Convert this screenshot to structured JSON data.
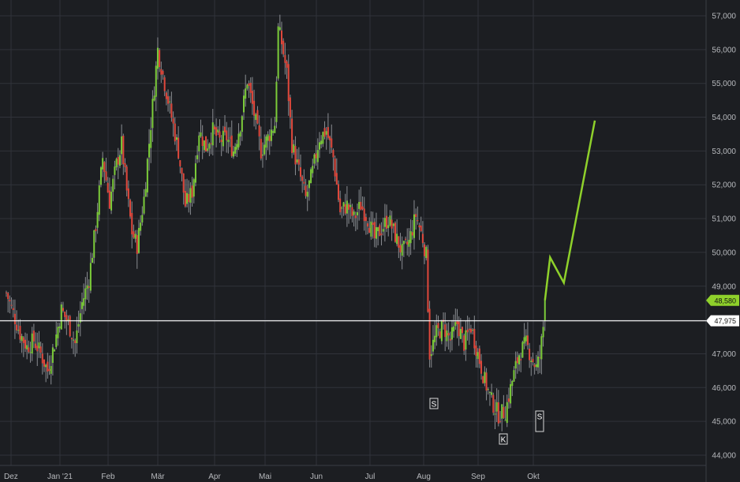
{
  "chart_data": {
    "type": "candlestick",
    "y_axis": {
      "position": "right",
      "ticks": [
        "44,000",
        "45,000",
        "46,000",
        "47,000",
        "48,000",
        "49,000",
        "50,000",
        "51,000",
        "52,000",
        "53,000",
        "54,000",
        "55,000",
        "56,000",
        "57,000"
      ],
      "range": [
        43.6,
        57.4
      ]
    },
    "x_axis": {
      "ticks": [
        "Dez",
        "Jan '21",
        "Feb",
        "Mär",
        "Apr",
        "Mai",
        "Jun",
        "Jul",
        "Aug",
        "Sep",
        "Okt"
      ]
    },
    "grid": true,
    "colors": {
      "background": "#1c1e22",
      "grid": "#30333a",
      "up": "#7ccc3a",
      "down": "#e0483c",
      "wick": "#8a8d92",
      "projection": "#8fd12b",
      "reference_line": "#ffffff"
    },
    "reference_line": {
      "value": 47.975,
      "label": "47,975"
    },
    "last_price": {
      "value": 48.58,
      "label": "48,580"
    },
    "close_path": [
      {
        "x": 0,
        "y": 48.8
      },
      {
        "x": 4,
        "y": 48.2
      },
      {
        "x": 8,
        "y": 47.6
      },
      {
        "x": 12,
        "y": 47.2
      },
      {
        "x": 16,
        "y": 47.4
      },
      {
        "x": 20,
        "y": 47.0
      },
      {
        "x": 24,
        "y": 46.5
      },
      {
        "x": 28,
        "y": 47.3
      },
      {
        "x": 32,
        "y": 48.3
      },
      {
        "x": 36,
        "y": 47.9
      },
      {
        "x": 40,
        "y": 47.3
      },
      {
        "x": 44,
        "y": 48.5
      },
      {
        "x": 48,
        "y": 49.2
      },
      {
        "x": 52,
        "y": 50.8
      },
      {
        "x": 56,
        "y": 52.8
      },
      {
        "x": 60,
        "y": 51.5
      },
      {
        "x": 64,
        "y": 52.6
      },
      {
        "x": 67,
        "y": 53.2
      },
      {
        "x": 70,
        "y": 51.8
      },
      {
        "x": 73,
        "y": 50.6
      },
      {
        "x": 76,
        "y": 50.2
      },
      {
        "x": 80,
        "y": 51.6
      },
      {
        "x": 84,
        "y": 53.8
      },
      {
        "x": 88,
        "y": 56.0
      },
      {
        "x": 92,
        "y": 55.0
      },
      {
        "x": 96,
        "y": 54.0
      },
      {
        "x": 100,
        "y": 53.0
      },
      {
        "x": 104,
        "y": 51.4
      },
      {
        "x": 108,
        "y": 51.8
      },
      {
        "x": 112,
        "y": 53.6
      },
      {
        "x": 116,
        "y": 53.1
      },
      {
        "x": 120,
        "y": 53.6
      },
      {
        "x": 124,
        "y": 53.3
      },
      {
        "x": 128,
        "y": 53.4
      },
      {
        "x": 132,
        "y": 53.0
      },
      {
        "x": 136,
        "y": 53.8
      },
      {
        "x": 140,
        "y": 55.1
      },
      {
        "x": 144,
        "y": 54.1
      },
      {
        "x": 148,
        "y": 53.0
      },
      {
        "x": 152,
        "y": 53.4
      },
      {
        "x": 156,
        "y": 53.8
      },
      {
        "x": 158,
        "y": 56.6
      },
      {
        "x": 160,
        "y": 56.2
      },
      {
        "x": 163,
        "y": 55.3
      },
      {
        "x": 166,
        "y": 53.2
      },
      {
        "x": 170,
        "y": 52.4
      },
      {
        "x": 174,
        "y": 51.6
      },
      {
        "x": 178,
        "y": 52.4
      },
      {
        "x": 182,
        "y": 53.4
      },
      {
        "x": 186,
        "y": 53.6
      },
      {
        "x": 190,
        "y": 52.8
      },
      {
        "x": 194,
        "y": 51.2
      },
      {
        "x": 198,
        "y": 51.4
      },
      {
        "x": 202,
        "y": 51.0
      },
      {
        "x": 206,
        "y": 51.4
      },
      {
        "x": 210,
        "y": 51.0
      },
      {
        "x": 214,
        "y": 50.4
      },
      {
        "x": 218,
        "y": 50.7
      },
      {
        "x": 222,
        "y": 51.0
      },
      {
        "x": 226,
        "y": 50.5
      },
      {
        "x": 230,
        "y": 50.0
      },
      {
        "x": 234,
        "y": 50.3
      },
      {
        "x": 238,
        "y": 51.1
      },
      {
        "x": 242,
        "y": 50.4
      },
      {
        "x": 244,
        "y": 49.9
      },
      {
        "x": 246,
        "y": 47.0
      },
      {
        "x": 250,
        "y": 47.6
      },
      {
        "x": 254,
        "y": 47.8
      },
      {
        "x": 258,
        "y": 47.4
      },
      {
        "x": 262,
        "y": 47.9
      },
      {
        "x": 266,
        "y": 47.3
      },
      {
        "x": 270,
        "y": 47.8
      },
      {
        "x": 274,
        "y": 47.0
      },
      {
        "x": 278,
        "y": 46.2
      },
      {
        "x": 282,
        "y": 45.6
      },
      {
        "x": 286,
        "y": 45.2
      },
      {
        "x": 290,
        "y": 45.3
      },
      {
        "x": 294,
        "y": 46.2
      },
      {
        "x": 298,
        "y": 47.0
      },
      {
        "x": 302,
        "y": 47.3
      },
      {
        "x": 306,
        "y": 46.8
      },
      {
        "x": 308,
        "y": 46.6
      },
      {
        "x": 310,
        "y": 46.9
      },
      {
        "x": 312,
        "y": 47.8
      },
      {
        "x": 313,
        "y": 48.58
      }
    ],
    "projection": [
      {
        "x": 313,
        "y": 48.58
      },
      {
        "x": 316,
        "y": 49.85
      },
      {
        "x": 324,
        "y": 49.1
      },
      {
        "x": 342,
        "y": 53.9
      }
    ],
    "markers": [
      {
        "label": "S",
        "at": "Aug"
      },
      {
        "label": "K",
        "at": "Sep"
      },
      {
        "label": "S",
        "at": "Okt"
      }
    ]
  }
}
